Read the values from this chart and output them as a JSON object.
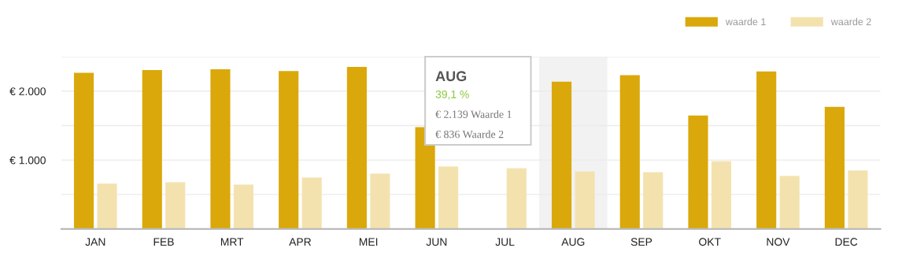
{
  "chart_data": {
    "type": "bar",
    "categories": [
      "JAN",
      "FEB",
      "MRT",
      "APR",
      "MEI",
      "JUN",
      "JUL",
      "AUG",
      "SEP",
      "OKT",
      "NOV",
      "DEC"
    ],
    "series": [
      {
        "name": "waarde 1",
        "color": "#daa80a",
        "values": [
          2267,
          2305,
          2318,
          2292,
          2352,
          1479,
          null,
          2139,
          2231,
          1647,
          2286,
          1773
        ]
      },
      {
        "name": "waarde 2",
        "color": "#f4e2ae",
        "values": [
          657,
          678,
          644,
          746,
          805,
          907,
          882,
          836,
          824,
          983,
          769,
          849
        ]
      }
    ],
    "ylim": [
      0,
      2500
    ],
    "yticks": [
      {
        "value": 0,
        "label": null
      },
      {
        "value": 500,
        "label": null
      },
      {
        "value": 1000,
        "label": "€ 1.000"
      },
      {
        "value": 1500,
        "label": null
      },
      {
        "value": 2000,
        "label": "€ 2.000"
      },
      {
        "value": 2500,
        "label": null
      }
    ],
    "grid": "y",
    "legend": "top right",
    "bands": [
      {
        "axis": "x",
        "from": "AUG",
        "to": "AUG",
        "color": "#f2f2f2"
      }
    ],
    "annotations": [
      "AUG",
      "39,1 %",
      "€ 2.139 Waarde 1",
      "€ 836 Waarde 2"
    ]
  }
}
